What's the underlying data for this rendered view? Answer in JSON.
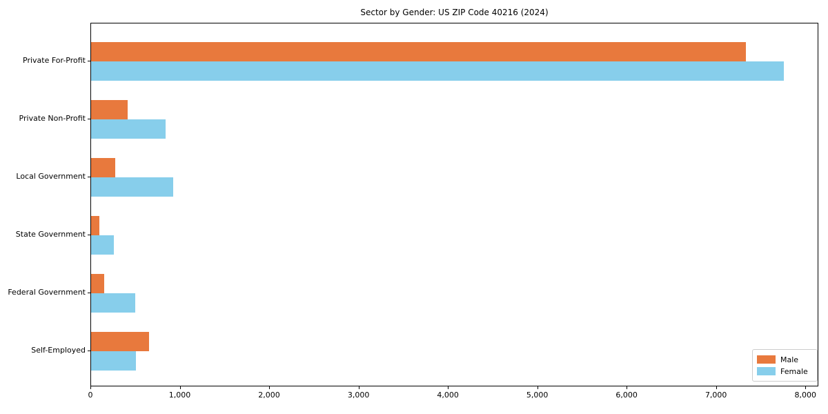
{
  "chart_data": {
    "type": "bar",
    "orientation": "horizontal",
    "title": "Sector by Gender: US ZIP Code 40216 (2024)",
    "categories": [
      "Private For-Profit",
      "Private Non-Profit",
      "Local Government",
      "State Government",
      "Federal Government",
      "Self-Employed"
    ],
    "series": [
      {
        "name": "Male",
        "color": "#e8793d",
        "values": [
          7330,
          410,
          270,
          90,
          145,
          645
        ]
      },
      {
        "name": "Female",
        "color": "#87ceeb",
        "values": [
          7755,
          835,
          915,
          255,
          495,
          500
        ]
      }
    ],
    "xlabel": "",
    "ylabel": "",
    "xlim": [
      0,
      8145
    ],
    "xticks": [
      0,
      1000,
      2000,
      3000,
      4000,
      5000,
      6000,
      7000,
      8000
    ],
    "xtick_labels": [
      "0",
      "1,000",
      "2,000",
      "3,000",
      "4,000",
      "5,000",
      "6,000",
      "7,000",
      "8,000"
    ],
    "grid": false,
    "legend": {
      "position": "lower-right",
      "entries": [
        {
          "label": "Male",
          "color": "#e8793d"
        },
        {
          "label": "Female",
          "color": "#87ceeb"
        }
      ]
    }
  }
}
